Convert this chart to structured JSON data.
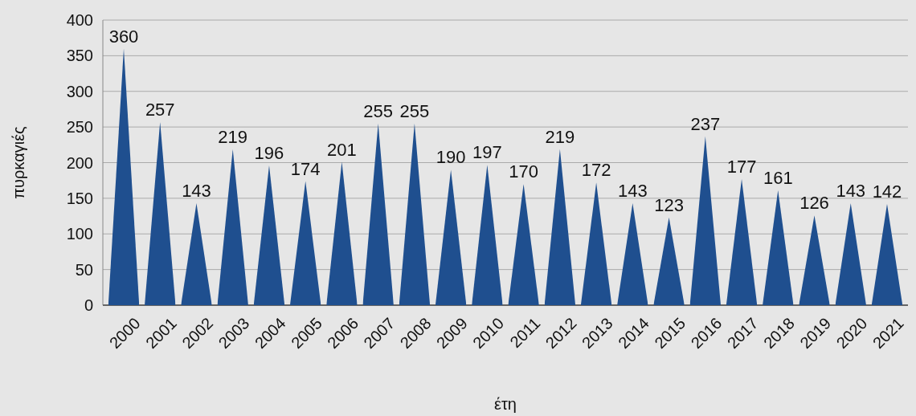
{
  "chart_data": {
    "type": "bar",
    "xlabel": "έτη",
    "ylabel": "πυρκαγιές",
    "categories": [
      "2000",
      "2001",
      "2002",
      "2003",
      "2004",
      "2005",
      "2006",
      "2007",
      "2008",
      "2009",
      "2010",
      "2011",
      "2012",
      "2013",
      "2014",
      "2015",
      "2016",
      "2017",
      "2018",
      "2019",
      "2020",
      "2021"
    ],
    "series": [
      {
        "color": "#1f4f8f",
        "values": [
          360,
          257,
          143,
          219,
          196,
          174,
          201,
          255,
          255,
          190,
          197,
          170,
          219,
          172,
          143,
          123,
          237,
          177,
          161,
          126,
          143,
          142
        ]
      }
    ],
    "ylim": [
      0,
      400
    ],
    "yticks": [
      0,
      50,
      100,
      150,
      200,
      250,
      300,
      350,
      400
    ],
    "grid": "y",
    "data_labels": true
  }
}
